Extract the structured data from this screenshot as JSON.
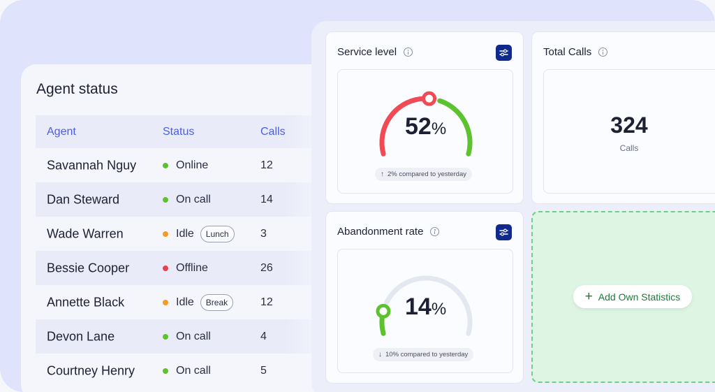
{
  "agent_status": {
    "title": "Agent status",
    "columns": {
      "agent": "Agent",
      "status": "Status",
      "calls": "Calls"
    },
    "rows": [
      {
        "name": "Savannah Nguy",
        "status": "Online",
        "status_color": "#5cc22e",
        "tag": "",
        "calls": "12"
      },
      {
        "name": "Dan Steward",
        "status": "On call",
        "status_color": "#5cc22e",
        "tag": "",
        "calls": "14"
      },
      {
        "name": "Wade Warren",
        "status": "Idle",
        "status_color": "#f59a23",
        "tag": "Lunch",
        "calls": "3"
      },
      {
        "name": "Bessie Cooper",
        "status": "Offline",
        "status_color": "#e9414d",
        "tag": "",
        "calls": "26"
      },
      {
        "name": "Annette Black",
        "status": "Idle",
        "status_color": "#f59a23",
        "tag": "Break",
        "calls": "12"
      },
      {
        "name": "Devon Lane",
        "status": "On call",
        "status_color": "#5cc22e",
        "tag": "",
        "calls": "4"
      },
      {
        "name": "Courtney Henry",
        "status": "On call",
        "status_color": "#5cc22e",
        "tag": "",
        "calls": "5"
      }
    ]
  },
  "service_level": {
    "title": "Service level",
    "value": "52",
    "unit": "%",
    "fraction": 0.52,
    "compare": "2% compared to yesterday",
    "compare_icon": "arrow-up-icon"
  },
  "total_calls": {
    "title": "Total Calls",
    "value": "324",
    "label": "Calls"
  },
  "abandonment_rate": {
    "title": "Abandonment rate",
    "value": "14",
    "unit": "%",
    "fraction": 0.14,
    "compare": "10% compared to yesterday",
    "compare_icon": "arrow-down-icon"
  },
  "add_statistics": {
    "label": "Add Own Statistics",
    "icon": "plus-icon"
  },
  "colors": {
    "accent": "#4a5ee5",
    "red": "#f04a55",
    "green": "#5cc22e",
    "track": "#e3e7f0",
    "button": "#0f2a8a"
  }
}
